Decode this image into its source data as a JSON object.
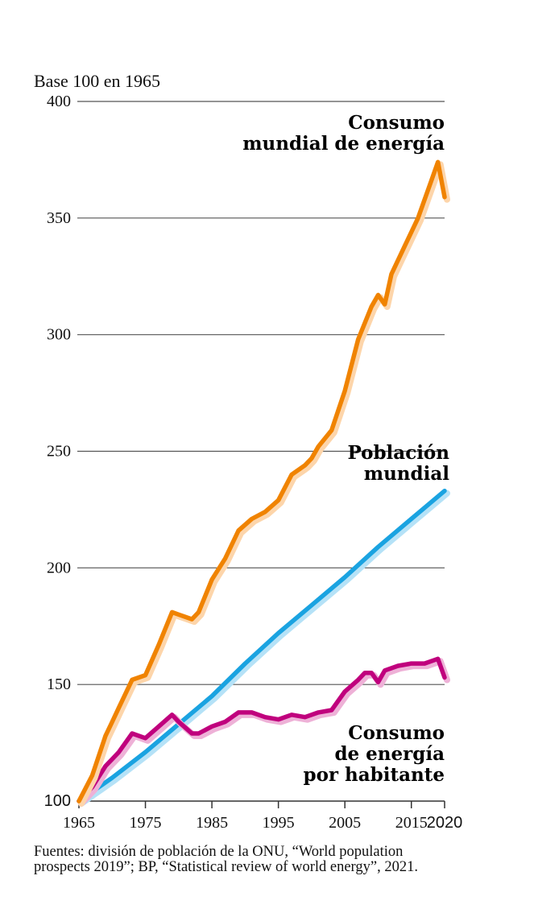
{
  "chart_data": {
    "type": "line",
    "title": "",
    "ylabel": "Base 100 en 1965",
    "xlabel": "",
    "xlim": [
      1965,
      2020
    ],
    "ylim": [
      100,
      400
    ],
    "grid": true,
    "y_ticks": [
      100,
      150,
      200,
      250,
      300,
      350,
      400
    ],
    "y_tick_labels": [
      "100",
      "150",
      "200",
      "250",
      "300",
      "350",
      "400"
    ],
    "x_ticks": [
      1965,
      1975,
      1985,
      1995,
      2005,
      2015,
      2020
    ],
    "x_tick_labels": [
      "1965",
      "1975",
      "1985",
      "1995",
      "2005",
      "2015",
      "2020"
    ],
    "series": [
      {
        "name": "Consumo mundial de energía",
        "label_lines": [
          "Consumo",
          "mundial de energía"
        ],
        "color": "#f08300",
        "shadow_color": "#fdd5aa",
        "x": [
          1965,
          1967,
          1969,
          1970,
          1971,
          1973,
          1975,
          1977,
          1979,
          1980,
          1982,
          1983,
          1985,
          1987,
          1989,
          1991,
          1993,
          1995,
          1997,
          1999,
          2000,
          2001,
          2003,
          2005,
          2007,
          2009,
          2010,
          2011,
          2012,
          2014,
          2016,
          2018,
          2019,
          2020
        ],
        "values": [
          100,
          111,
          128,
          134,
          140,
          152,
          154,
          167,
          181,
          180,
          178,
          181,
          195,
          204,
          216,
          221,
          224,
          229,
          240,
          244,
          247,
          252,
          259,
          276,
          298,
          312,
          317,
          313,
          326,
          338,
          350,
          366,
          374,
          359
        ]
      },
      {
        "name": "Población mundial",
        "label_lines": [
          "Población",
          "mundial"
        ],
        "color": "#1aa3e1",
        "shadow_color": "#b5e2f7",
        "x": [
          1965,
          1970,
          1975,
          1980,
          1985,
          1990,
          1995,
          2000,
          2005,
          2010,
          2015,
          2020
        ],
        "values": [
          100,
          110,
          121,
          133,
          145,
          159,
          172,
          184,
          196,
          209,
          221,
          233
        ]
      },
      {
        "name": "Consumo de energía por habitante",
        "label_lines": [
          "Consumo",
          "de energía",
          "por habitante"
        ],
        "color": "#c0007d",
        "shadow_color": "#eeb1d7",
        "x": [
          1965,
          1967,
          1969,
          1970,
          1971,
          1973,
          1975,
          1977,
          1979,
          1980,
          1982,
          1983,
          1985,
          1987,
          1989,
          1991,
          1993,
          1995,
          1997,
          1999,
          2001,
          2003,
          2005,
          2007,
          2008,
          2009,
          2010,
          2011,
          2013,
          2015,
          2017,
          2018,
          2019,
          2020
        ],
        "values": [
          100,
          106,
          115,
          118,
          121,
          129,
          127,
          132,
          137,
          134,
          129,
          129,
          132,
          134,
          138,
          138,
          136,
          135,
          137,
          136,
          138,
          139,
          147,
          152,
          155,
          155,
          151,
          156,
          158,
          159,
          159,
          160,
          161,
          153
        ]
      }
    ],
    "source_lines": [
      "Fuentes: división de población de la ONU, “World population",
      "prospects 2019”; BP, “Statistical review of world energy”, 2021."
    ]
  }
}
